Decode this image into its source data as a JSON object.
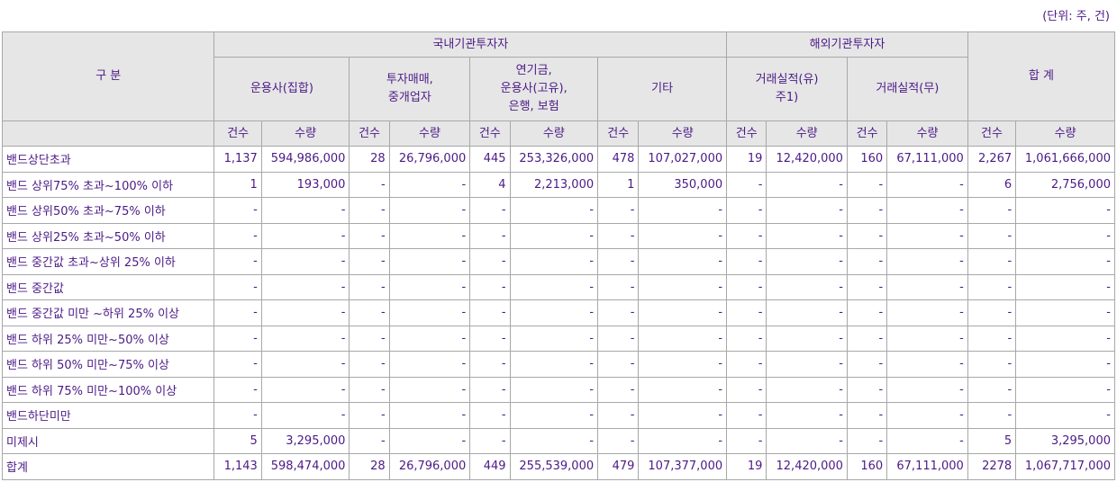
{
  "unit_note": "(단위: 주, 건)",
  "header": {
    "category": "구 분",
    "domestic": "국내기관투자자",
    "foreign": "해외기관투자자",
    "total": "합 계",
    "groups": [
      "운용사(집합)",
      "투자매매,\n중개업자",
      "연기금,\n운용사(고유),\n은행, 보험",
      "기타",
      "거래실적(유)\n주1)",
      "거래실적(무)"
    ],
    "count": "건수",
    "qty": "수량"
  },
  "rows": [
    {
      "label": "밴드상단초과",
      "cells": [
        "1,137",
        "594,986,000",
        "28",
        "26,796,000",
        "445",
        "253,326,000",
        "478",
        "107,027,000",
        "19",
        "12,420,000",
        "160",
        "67,111,000",
        "2,267",
        "1,061,666,000"
      ]
    },
    {
      "label": "밴드 상위75% 초과~100% 이하",
      "cells": [
        "1",
        "193,000",
        "-",
        "-",
        "4",
        "2,213,000",
        "1",
        "350,000",
        "-",
        "-",
        "-",
        "-",
        "6",
        "2,756,000"
      ]
    },
    {
      "label": "밴드 상위50% 초과~75% 이하",
      "cells": [
        "-",
        "-",
        "-",
        "-",
        "-",
        "-",
        "-",
        "-",
        "-",
        "-",
        "-",
        "-",
        "-",
        "-"
      ]
    },
    {
      "label": "밴드 상위25% 초과~50% 이하",
      "cells": [
        "-",
        "-",
        "-",
        "-",
        "-",
        "-",
        "-",
        "-",
        "-",
        "-",
        "-",
        "-",
        "-",
        "-"
      ]
    },
    {
      "label": "밴드 중간값 초과~상위 25% 이하",
      "cells": [
        "-",
        "-",
        "-",
        "-",
        "-",
        "-",
        "-",
        "-",
        "-",
        "-",
        "-",
        "-",
        "-",
        "-"
      ]
    },
    {
      "label": "밴드 중간값",
      "cells": [
        "-",
        "-",
        "-",
        "-",
        "-",
        "-",
        "-",
        "-",
        "-",
        "-",
        "-",
        "-",
        "-",
        "-"
      ]
    },
    {
      "label": "밴드 중간값 미만 ~하위 25% 이상",
      "cells": [
        "-",
        "-",
        "-",
        "-",
        "-",
        "-",
        "-",
        "-",
        "-",
        "-",
        "-",
        "-",
        "-",
        "-"
      ]
    },
    {
      "label": "밴드 하위 25% 미만~50% 이상",
      "cells": [
        "-",
        "-",
        "-",
        "-",
        "-",
        "-",
        "-",
        "-",
        "-",
        "-",
        "-",
        "-",
        "-",
        "-"
      ]
    },
    {
      "label": "밴드 하위 50% 미만~75% 이상",
      "cells": [
        "-",
        "-",
        "-",
        "-",
        "-",
        "-",
        "-",
        "-",
        "-",
        "-",
        "-",
        "-",
        "-",
        "-"
      ]
    },
    {
      "label": "밴드 하위 75% 미만~100% 이상",
      "cells": [
        "-",
        "-",
        "-",
        "-",
        "-",
        "-",
        "-",
        "-",
        "-",
        "-",
        "-",
        "-",
        "-",
        "-"
      ]
    },
    {
      "label": "밴드하단미만",
      "cells": [
        "-",
        "-",
        "-",
        "-",
        "-",
        "-",
        "-",
        "-",
        "-",
        "-",
        "-",
        "-",
        "-",
        "-"
      ]
    },
    {
      "label": "미제시",
      "cells": [
        "5",
        "3,295,000",
        "-",
        "-",
        "-",
        "-",
        "-",
        "-",
        "-",
        "-",
        "-",
        "-",
        "5",
        "3,295,000"
      ]
    },
    {
      "label": "합계",
      "cells": [
        "1,143",
        "598,474,000",
        "28",
        "26,796,000",
        "449",
        "255,539,000",
        "479",
        "107,377,000",
        "19",
        "12,420,000",
        "160",
        "67,111,000",
        "2278",
        "1,067,717,000"
      ]
    }
  ]
}
